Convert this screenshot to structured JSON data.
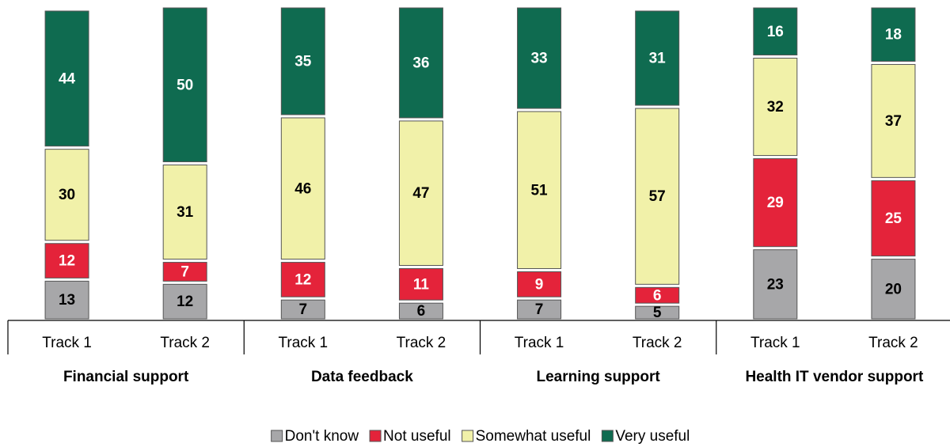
{
  "chart_data": {
    "type": "stacked_bar",
    "categories": [
      "Track 1",
      "Track 2",
      "Track 1",
      "Track 2",
      "Track 1",
      "Track 2",
      "Track 1",
      "Track 2"
    ],
    "groups": [
      "Financial support",
      "Data feedback",
      "Learning support",
      "Health IT vendor support"
    ],
    "series": [
      {
        "name": "Don't know",
        "color": "#a7a7a9",
        "values": [
          13,
          12,
          7,
          6,
          7,
          5,
          23,
          20
        ]
      },
      {
        "name": "Not useful",
        "color": "#e4233a",
        "values": [
          12,
          7,
          12,
          11,
          9,
          6,
          29,
          25
        ]
      },
      {
        "name": "Somewhat useful",
        "color": "#f1f1a9",
        "values": [
          30,
          31,
          46,
          47,
          51,
          57,
          32,
          37
        ]
      },
      {
        "name": "Very useful",
        "color": "#0f6b50",
        "values": [
          44,
          50,
          35,
          36,
          33,
          31,
          16,
          18
        ]
      }
    ],
    "ylim": [
      0,
      100
    ],
    "legend": "bottom"
  }
}
